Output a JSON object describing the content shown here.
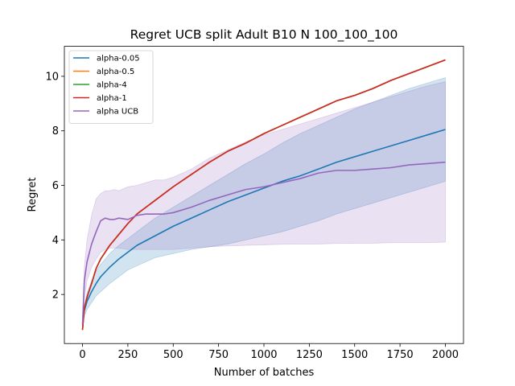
{
  "chart_data": {
    "type": "line",
    "title": "Regret UCB split Adult B10 N 100_100_100",
    "xlabel": "Number of batches",
    "ylabel": "Regret",
    "xlim": [
      -100,
      2100
    ],
    "ylim": [
      0.2,
      11.1
    ],
    "xticks": [
      0,
      250,
      500,
      750,
      1000,
      1250,
      1500,
      1750,
      2000
    ],
    "yticks": [
      2,
      4,
      6,
      8,
      10
    ],
    "legend_position": "top-left",
    "grid": false,
    "series": [
      {
        "name": "alpha-0.05",
        "color": "#1f77b4",
        "x": [
          0,
          10,
          25,
          50,
          75,
          100,
          150,
          200,
          250,
          300,
          400,
          500,
          600,
          700,
          800,
          900,
          1000,
          1100,
          1200,
          1300,
          1400,
          1500,
          1600,
          1700,
          1800,
          1900,
          2000
        ],
        "y": [
          0.9,
          1.4,
          1.75,
          2.1,
          2.4,
          2.65,
          3.0,
          3.3,
          3.55,
          3.8,
          4.15,
          4.5,
          4.8,
          5.1,
          5.4,
          5.65,
          5.9,
          6.15,
          6.35,
          6.6,
          6.85,
          7.05,
          7.25,
          7.45,
          7.65,
          7.85,
          8.05
        ],
        "band_upper": [
          1.0,
          1.6,
          2.05,
          2.5,
          2.85,
          3.1,
          3.5,
          3.8,
          4.05,
          4.3,
          4.8,
          5.2,
          5.6,
          6.0,
          6.4,
          6.8,
          7.15,
          7.55,
          7.9,
          8.2,
          8.5,
          8.8,
          9.05,
          9.3,
          9.55,
          9.75,
          9.95
        ],
        "band_lower": [
          0.8,
          1.2,
          1.45,
          1.7,
          1.95,
          2.1,
          2.4,
          2.65,
          2.9,
          3.05,
          3.35,
          3.5,
          3.65,
          3.75,
          3.85,
          4.0,
          4.15,
          4.3,
          4.5,
          4.7,
          4.95,
          5.15,
          5.35,
          5.55,
          5.75,
          5.95,
          6.15
        ]
      },
      {
        "name": "alpha-0.5",
        "color": "#ff7f0e",
        "x": [
          0,
          10,
          25,
          50,
          75,
          100,
          150,
          200,
          250,
          300,
          400,
          500,
          600,
          700,
          800,
          900,
          1000,
          1100,
          1200,
          1300,
          1400,
          1500,
          1600,
          1700,
          1800,
          1900,
          2000
        ],
        "y": [
          0.7,
          1.5,
          1.9,
          2.4,
          2.95,
          3.3,
          3.8,
          4.2,
          4.6,
          4.95,
          5.45,
          5.95,
          6.4,
          6.85,
          7.25,
          7.55,
          7.9,
          8.2,
          8.5,
          8.8,
          9.1,
          9.3,
          9.55,
          9.85,
          10.1,
          10.35,
          10.6
        ]
      },
      {
        "name": "alpha-4",
        "color": "#2ca02c",
        "x": [
          0,
          10,
          25,
          50,
          75,
          100,
          150,
          200,
          250,
          300,
          400,
          500,
          600,
          700,
          800,
          900,
          1000,
          1100,
          1200,
          1300,
          1400,
          1500,
          1600,
          1700,
          1800,
          1900,
          2000
        ],
        "y": [
          0.7,
          1.5,
          1.9,
          2.4,
          2.95,
          3.3,
          3.8,
          4.2,
          4.6,
          4.95,
          5.45,
          5.95,
          6.4,
          6.85,
          7.25,
          7.55,
          7.9,
          8.2,
          8.5,
          8.8,
          9.1,
          9.3,
          9.55,
          9.85,
          10.1,
          10.35,
          10.6
        ]
      },
      {
        "name": "alpha-1",
        "color": "#d62728",
        "x": [
          0,
          10,
          25,
          50,
          75,
          100,
          150,
          200,
          250,
          300,
          400,
          500,
          600,
          700,
          800,
          900,
          1000,
          1100,
          1200,
          1300,
          1400,
          1500,
          1600,
          1700,
          1800,
          1900,
          2000
        ],
        "y": [
          0.7,
          1.5,
          1.9,
          2.4,
          2.95,
          3.3,
          3.8,
          4.2,
          4.6,
          4.95,
          5.45,
          5.95,
          6.4,
          6.85,
          7.25,
          7.55,
          7.9,
          8.2,
          8.5,
          8.8,
          9.1,
          9.3,
          9.55,
          9.85,
          10.1,
          10.35,
          10.6
        ]
      },
      {
        "name": "alpha UCB",
        "color": "#9467bd",
        "x": [
          0,
          10,
          25,
          50,
          75,
          100,
          125,
          150,
          175,
          200,
          250,
          300,
          350,
          400,
          450,
          500,
          600,
          700,
          800,
          900,
          1000,
          1100,
          1200,
          1300,
          1400,
          1500,
          1600,
          1700,
          1800,
          1900,
          2000
        ],
        "y": [
          0.9,
          2.5,
          3.2,
          3.85,
          4.3,
          4.7,
          4.8,
          4.75,
          4.75,
          4.8,
          4.75,
          4.9,
          4.95,
          4.95,
          4.95,
          5.0,
          5.2,
          5.45,
          5.65,
          5.85,
          5.95,
          6.1,
          6.25,
          6.45,
          6.55,
          6.55,
          6.6,
          6.65,
          6.75,
          6.8,
          6.85
        ],
        "band_upper": [
          1.0,
          3.0,
          4.0,
          4.9,
          5.5,
          5.7,
          5.8,
          5.8,
          5.85,
          5.8,
          5.95,
          6.0,
          6.1,
          6.2,
          6.2,
          6.3,
          6.6,
          7.0,
          7.3,
          7.6,
          7.85,
          8.05,
          8.25,
          8.45,
          8.65,
          8.85,
          9.05,
          9.25,
          9.45,
          9.65,
          9.8
        ],
        "band_lower": [
          0.8,
          1.8,
          2.5,
          3.0,
          3.3,
          3.55,
          3.65,
          3.7,
          3.7,
          3.7,
          3.65,
          3.65,
          3.65,
          3.65,
          3.65,
          3.65,
          3.7,
          3.75,
          3.78,
          3.8,
          3.82,
          3.84,
          3.85,
          3.85,
          3.87,
          3.88,
          3.88,
          3.9,
          3.9,
          3.9,
          3.92
        ]
      }
    ]
  }
}
